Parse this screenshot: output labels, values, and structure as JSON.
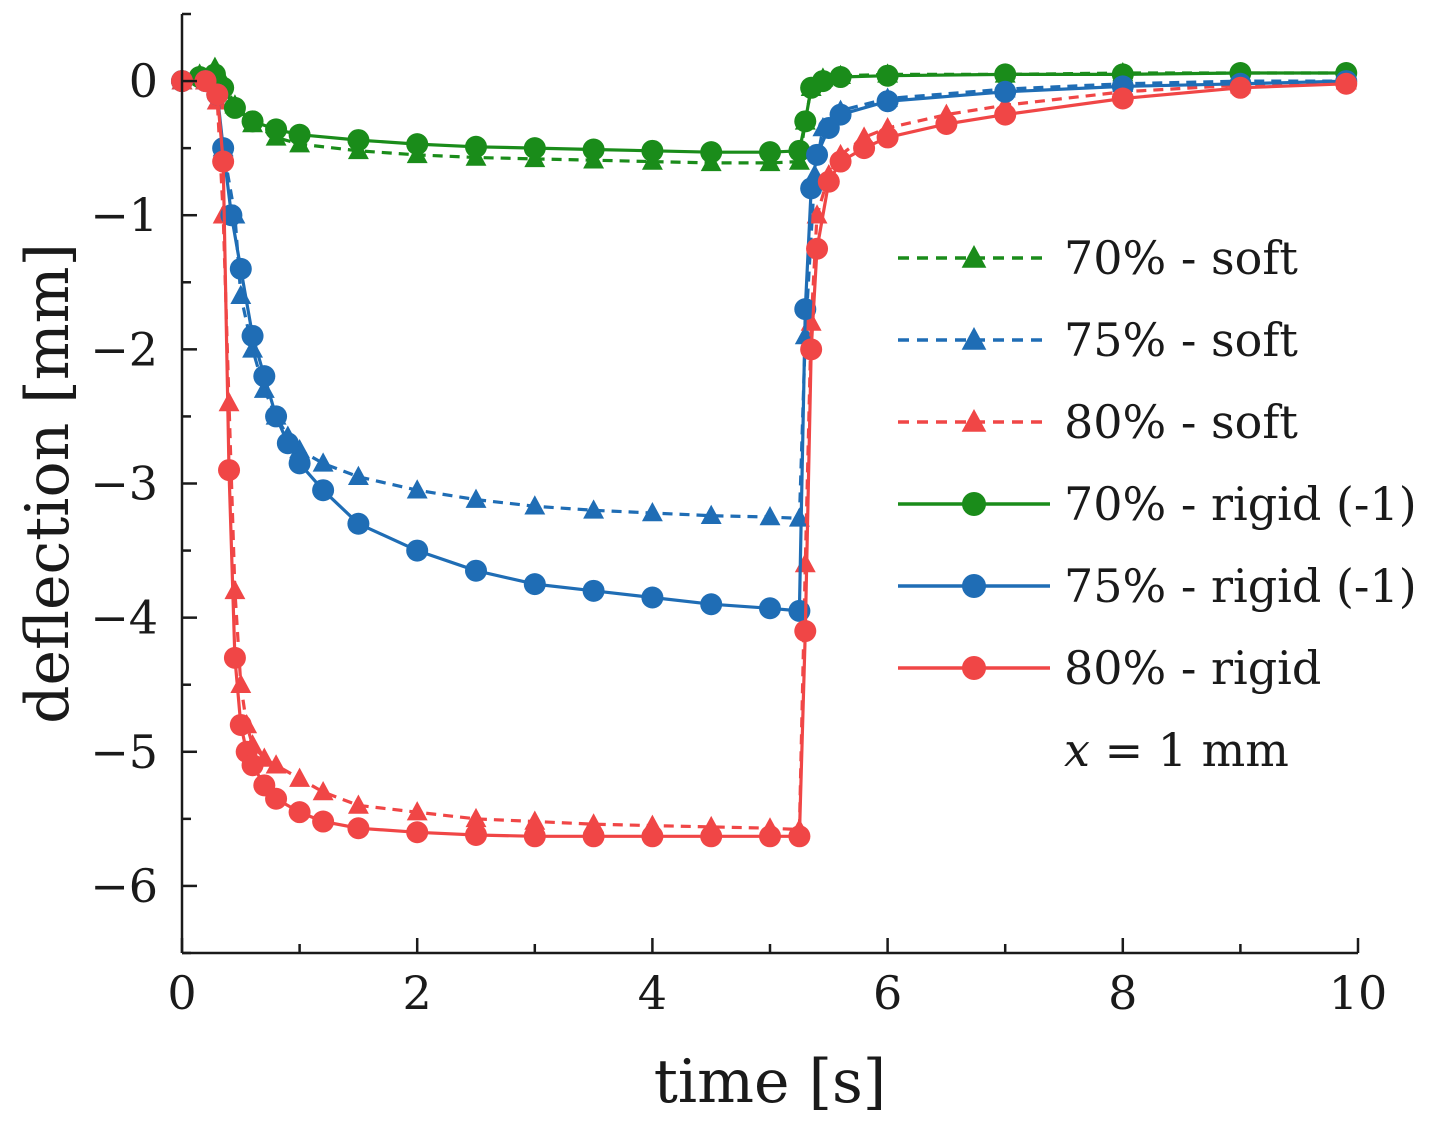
{
  "chart_data": {
    "type": "line",
    "title": "",
    "xlabel": "time [s]",
    "ylabel": "deflection [mm]",
    "xlim": [
      0,
      10
    ],
    "ylim": [
      -6.5,
      0.5
    ],
    "xticks": [
      0,
      2,
      4,
      6,
      8,
      10
    ],
    "xtick_labels": [
      "0",
      "2",
      "4",
      "6",
      "8",
      "10"
    ],
    "yticks": [
      0,
      -1,
      -2,
      -3,
      -4,
      -5,
      -6
    ],
    "ytick_labels": [
      "0",
      "−1",
      "−2",
      "−3",
      "−4",
      "−5",
      "−6"
    ],
    "grid": false,
    "legend_position": "right",
    "annotation": {
      "var": "x",
      "rest": " = 1 mm"
    },
    "series": [
      {
        "name": "70% - soft",
        "color": "#1a8c1a",
        "marker": "triangle",
        "dashed": true,
        "x": [
          0,
          0.15,
          0.28,
          0.35,
          0.45,
          0.6,
          0.8,
          1.0,
          1.5,
          2.0,
          2.5,
          3.0,
          3.5,
          4.0,
          4.5,
          5.0,
          5.25,
          5.3,
          5.35,
          5.45,
          5.6,
          6.0,
          7.0,
          8.0,
          9.0,
          9.9
        ],
        "y": [
          0.0,
          0.05,
          0.1,
          0.0,
          -0.18,
          -0.32,
          -0.42,
          -0.47,
          -0.52,
          -0.55,
          -0.57,
          -0.58,
          -0.59,
          -0.6,
          -0.61,
          -0.61,
          -0.6,
          -0.3,
          -0.05,
          0.02,
          0.04,
          0.05,
          0.05,
          0.06,
          0.06,
          0.06
        ]
      },
      {
        "name": "75% - soft",
        "color": "#1f6db5",
        "marker": "triangle",
        "dashed": true,
        "x": [
          0,
          0.2,
          0.3,
          0.35,
          0.45,
          0.5,
          0.6,
          0.7,
          0.8,
          0.9,
          1.0,
          1.2,
          1.5,
          2.0,
          2.5,
          3.0,
          3.5,
          4.0,
          4.5,
          5.0,
          5.25,
          5.3,
          5.38,
          5.45,
          5.6,
          6.0,
          7.0,
          8.0,
          9.0,
          9.9
        ],
        "y": [
          0.0,
          0.0,
          -0.15,
          -0.5,
          -1.0,
          -1.6,
          -2.0,
          -2.3,
          -2.5,
          -2.65,
          -2.75,
          -2.85,
          -2.95,
          -3.05,
          -3.12,
          -3.17,
          -3.2,
          -3.22,
          -3.24,
          -3.25,
          -3.26,
          -1.9,
          -0.7,
          -0.35,
          -0.22,
          -0.13,
          -0.06,
          -0.02,
          0.0,
          0.0
        ]
      },
      {
        "name": "80% - soft",
        "color": "#f04646",
        "marker": "triangle",
        "dashed": true,
        "x": [
          0,
          0.2,
          0.3,
          0.35,
          0.4,
          0.45,
          0.5,
          0.55,
          0.6,
          0.7,
          0.8,
          1.0,
          1.2,
          1.5,
          2.0,
          2.5,
          3.0,
          3.5,
          4.0,
          4.5,
          5.0,
          5.25,
          5.3,
          5.35,
          5.4,
          5.5,
          5.6,
          5.8,
          6.0,
          6.5,
          7.0,
          8.0,
          9.0,
          9.9
        ],
        "y": [
          0.0,
          0.0,
          -0.15,
          -1.0,
          -2.4,
          -3.8,
          -4.5,
          -4.8,
          -4.95,
          -5.05,
          -5.1,
          -5.2,
          -5.3,
          -5.4,
          -5.45,
          -5.5,
          -5.52,
          -5.54,
          -5.55,
          -5.56,
          -5.57,
          -5.58,
          -3.6,
          -1.8,
          -1.0,
          -0.7,
          -0.55,
          -0.42,
          -0.35,
          -0.25,
          -0.18,
          -0.08,
          -0.03,
          0.0
        ]
      },
      {
        "name": "70% - rigid (-1)",
        "color": "#1a8c1a",
        "marker": "circle",
        "dashed": false,
        "x": [
          0,
          0.15,
          0.28,
          0.35,
          0.45,
          0.6,
          0.8,
          1.0,
          1.5,
          2.0,
          2.5,
          3.0,
          3.5,
          4.0,
          4.5,
          5.0,
          5.25,
          5.3,
          5.35,
          5.45,
          5.6,
          6.0,
          7.0,
          8.0,
          9.0,
          9.9
        ],
        "y": [
          0.0,
          0.03,
          0.05,
          -0.05,
          -0.2,
          -0.3,
          -0.36,
          -0.4,
          -0.44,
          -0.47,
          -0.49,
          -0.5,
          -0.51,
          -0.52,
          -0.53,
          -0.53,
          -0.52,
          -0.3,
          -0.05,
          0.0,
          0.03,
          0.04,
          0.05,
          0.05,
          0.06,
          0.06
        ]
      },
      {
        "name": "75% - rigid (-1)",
        "color": "#1f6db5",
        "marker": "circle",
        "dashed": false,
        "x": [
          0,
          0.2,
          0.3,
          0.35,
          0.42,
          0.5,
          0.6,
          0.7,
          0.8,
          0.9,
          1.0,
          1.2,
          1.5,
          2.0,
          2.5,
          3.0,
          3.5,
          4.0,
          4.5,
          5.0,
          5.25,
          5.3,
          5.35,
          5.4,
          5.5,
          5.6,
          6.0,
          7.0,
          8.0,
          9.0,
          9.9
        ],
        "y": [
          0.0,
          0.0,
          -0.1,
          -0.5,
          -1.0,
          -1.4,
          -1.9,
          -2.2,
          -2.5,
          -2.7,
          -2.85,
          -3.05,
          -3.3,
          -3.5,
          -3.65,
          -3.75,
          -3.8,
          -3.85,
          -3.9,
          -3.93,
          -3.95,
          -1.7,
          -0.8,
          -0.55,
          -0.35,
          -0.25,
          -0.15,
          -0.08,
          -0.04,
          -0.02,
          0.0
        ]
      },
      {
        "name": "80% - rigid",
        "color": "#f04646",
        "marker": "circle",
        "dashed": false,
        "x": [
          0,
          0.2,
          0.3,
          0.35,
          0.4,
          0.45,
          0.5,
          0.55,
          0.6,
          0.7,
          0.8,
          1.0,
          1.2,
          1.5,
          2.0,
          2.5,
          3.0,
          3.5,
          4.0,
          4.5,
          5.0,
          5.25,
          5.3,
          5.35,
          5.4,
          5.5,
          5.6,
          5.8,
          6.0,
          6.5,
          7.0,
          8.0,
          9.0,
          9.9
        ],
        "y": [
          0.0,
          0.0,
          -0.1,
          -0.6,
          -2.9,
          -4.3,
          -4.8,
          -5.0,
          -5.1,
          -5.25,
          -5.35,
          -5.45,
          -5.52,
          -5.57,
          -5.6,
          -5.62,
          -5.63,
          -5.63,
          -5.63,
          -5.63,
          -5.63,
          -5.63,
          -4.1,
          -2.0,
          -1.25,
          -0.75,
          -0.6,
          -0.5,
          -0.42,
          -0.32,
          -0.25,
          -0.13,
          -0.05,
          -0.02
        ]
      }
    ]
  }
}
